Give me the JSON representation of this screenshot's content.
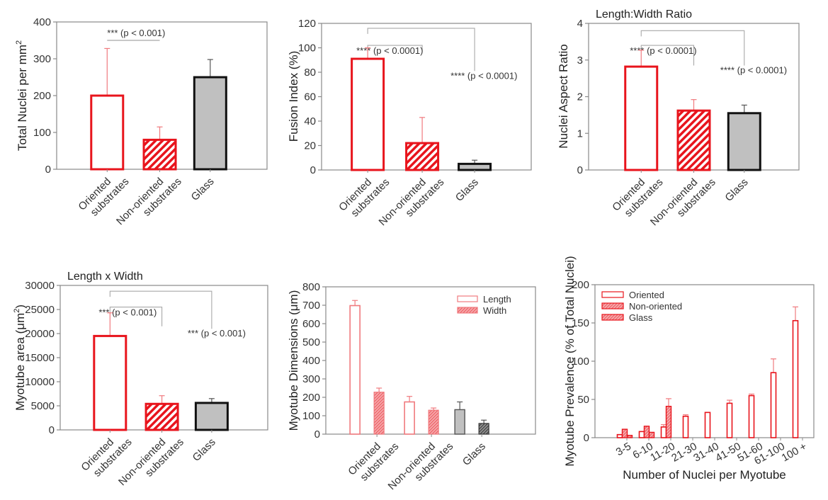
{
  "colors": {
    "red": "#e8141c",
    "light_red": "#f07a7e",
    "gray_fill": "#c0c0c0",
    "dark_gray_fill": "#6e6e6e",
    "axis": "#8a8a8a",
    "bracket": "#a8a8a8"
  },
  "chart_data": [
    {
      "id": "total-nuclei",
      "type": "bar",
      "title": "",
      "xlabel": "",
      "ylabel": "Total Nuclei per mm",
      "ylabel_sup": "2",
      "ylim": [
        0,
        400
      ],
      "yticks": [
        0,
        100,
        200,
        300,
        400
      ],
      "categories": [
        [
          "Oriented",
          "substrates"
        ],
        [
          "Non-oriented",
          "substrates"
        ],
        [
          "Glass"
        ]
      ],
      "values": [
        200,
        80,
        250
      ],
      "errors": [
        128,
        35,
        48
      ],
      "styles": [
        "open-red",
        "hatched-red",
        "gray-black"
      ],
      "annotations": [
        {
          "text": "*** (p < 0.001)",
          "from": 0,
          "to": 1,
          "level": 350,
          "type": "line"
        }
      ]
    },
    {
      "id": "fusion-index",
      "type": "bar",
      "title": "",
      "xlabel": "",
      "ylabel": "Fusion Index (%)",
      "ylim": [
        0,
        120
      ],
      "yticks": [
        0,
        20,
        40,
        60,
        80,
        100,
        120
      ],
      "categories": [
        [
          "Oriented",
          "substrates"
        ],
        [
          "Non-oriented",
          "substrates"
        ],
        [
          "Glass"
        ]
      ],
      "values": [
        91,
        22,
        5
      ],
      "errors": [
        9,
        21,
        3
      ],
      "styles": [
        "open-red",
        "hatched-red",
        "gray-black"
      ],
      "annotations": [
        {
          "text": "**** (p < 0.0001)",
          "from": 0,
          "to": 1,
          "level": 102,
          "drop_to": 97,
          "type": "bracket"
        },
        {
          "text": "**** (p < 0.0001)",
          "from": 0,
          "to": 2,
          "level": 116,
          "drop_to": 81,
          "type": "bracket"
        }
      ]
    },
    {
      "id": "nuclei-aspect-ratio",
      "type": "bar",
      "title": "Length:Width Ratio",
      "xlabel": "",
      "ylabel": "Nuclei Aspect Ratio",
      "ylim": [
        0,
        4
      ],
      "yticks": [
        0,
        1,
        2,
        3,
        4
      ],
      "categories": [
        [
          "Oriented",
          "substrates"
        ],
        [
          "Non-oriented",
          "substrates"
        ],
        [
          "Glass"
        ]
      ],
      "values": [
        2.82,
        1.62,
        1.55
      ],
      "errors": [
        0.45,
        0.3,
        0.22
      ],
      "styles": [
        "open-red",
        "hatched-red",
        "gray-black"
      ],
      "annotations": [
        {
          "text": "**** (p < 0.0001)",
          "from": 0,
          "to": 1,
          "level": 3.4,
          "drop_to": 2.85,
          "type": "bracket"
        },
        {
          "text": "**** (p < 0.0001)",
          "from": 0,
          "to": 2,
          "level": 3.8,
          "drop_to": 2.85,
          "type": "bracket"
        }
      ]
    },
    {
      "id": "myotube-area",
      "type": "bar",
      "title": "Length x Width",
      "xlabel": "",
      "ylabel": "Myotube area (μm",
      "ylabel_sup": "2",
      "ylabel_tail": ")",
      "ylim": [
        0,
        30000
      ],
      "yticks": [
        0,
        5000,
        10000,
        15000,
        20000,
        25000,
        30000
      ],
      "categories": [
        [
          "Oriented",
          "substrates"
        ],
        [
          "Non-oriented",
          "substrates"
        ],
        [
          "Glass"
        ]
      ],
      "values": [
        19500,
        5400,
        5600
      ],
      "errors": [
        4800,
        1700,
        900
      ],
      "styles": [
        "open-red",
        "hatched-red",
        "gray-black"
      ],
      "annotations": [
        {
          "text": "*** (p < 0.001)",
          "from": 0,
          "to": 1,
          "level": 25500,
          "drop_to": 21500,
          "type": "bracket"
        },
        {
          "text": "*** (p < 0.001)",
          "from": 0,
          "to": 2,
          "level": 28800,
          "drop_to": 21000,
          "type": "bracket"
        }
      ]
    },
    {
      "id": "myotube-dimensions",
      "type": "bar",
      "title": "",
      "xlabel": "",
      "ylabel": "Myotube Dimensions (μm)",
      "ylim": [
        0,
        800
      ],
      "yticks": [
        0,
        100,
        200,
        300,
        400,
        500,
        600,
        700,
        800
      ],
      "categories": [
        [
          "Oriented",
          "substrates"
        ],
        [
          "Non-oriented",
          "substrates"
        ],
        [
          "Glass"
        ]
      ],
      "series": [
        {
          "name": "Length",
          "values": [
            698,
            175,
            133
          ],
          "errors": [
            28,
            30,
            42
          ],
          "styles": [
            "open-lightred",
            "open-lightred",
            "gray-gray"
          ]
        },
        {
          "name": "Width",
          "values": [
            228,
            130,
            58
          ],
          "errors": [
            22,
            12,
            18
          ],
          "styles": [
            "hatched-lightred",
            "hatched-lightred",
            "hatched-darkgray"
          ]
        }
      ],
      "legend": {
        "position": "top-right",
        "entries": [
          "Length",
          "Width"
        ]
      }
    },
    {
      "id": "myotube-prevalence",
      "type": "bar",
      "title": "",
      "xlabel": "Number of Nuclei per Myotube",
      "ylabel": "Myotube Prevalence (% of Total Nuclei)",
      "ylim": [
        0,
        200
      ],
      "yticks": [
        0,
        50,
        100,
        150,
        200
      ],
      "categories": [
        "3-5",
        "6-10",
        "11-20",
        "21-30",
        "31-40",
        "41-50",
        "51-60",
        "61-100",
        "100 +"
      ],
      "series": [
        {
          "name": "Oriented",
          "values": [
            4,
            8,
            14,
            28,
            33,
            45,
            55,
            85,
            153
          ],
          "errors": [
            0,
            0,
            3,
            2,
            0,
            4,
            2,
            18,
            18
          ]
        },
        {
          "name": "Non-oriented",
          "values": [
            11,
            15,
            41,
            null,
            null,
            null,
            null,
            null,
            null
          ],
          "errors": [
            0,
            0,
            10,
            0,
            0,
            0,
            0,
            0,
            0
          ]
        },
        {
          "name": "Glass",
          "values": [
            3,
            7,
            null,
            null,
            null,
            null,
            null,
            null,
            null
          ],
          "errors": [
            0,
            0,
            0,
            0,
            0,
            0,
            0,
            0,
            0
          ]
        }
      ],
      "legend": {
        "position": "top-left",
        "entries": [
          "Oriented",
          "Non-oriented",
          "Glass"
        ]
      }
    }
  ]
}
